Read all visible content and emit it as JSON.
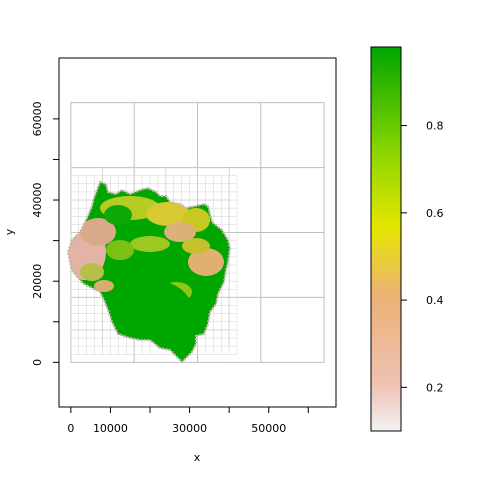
{
  "chart_data": {
    "type": "heatmap",
    "subtype": "quadtree raster map with colour key",
    "xlabel": "x",
    "ylabel": "y",
    "xlim": [
      -3000,
      67000
    ],
    "ylim": [
      -11000,
      75000
    ],
    "x_ticks": [
      0,
      10000,
      30000,
      50000
    ],
    "x_tick_marks": [
      0,
      10000,
      20000,
      30000,
      40000,
      50000,
      60000
    ],
    "y_ticks": [
      0,
      20000,
      40000,
      60000
    ],
    "y_tick_marks": [
      0,
      10000,
      20000,
      30000,
      40000,
      50000,
      60000
    ],
    "grid_extent": {
      "x": [
        0,
        64000
      ],
      "y": [
        0,
        64000
      ]
    },
    "grid_lines": {
      "x": [
        16000,
        32000,
        48000
      ],
      "y": [
        16000,
        32000,
        48000
      ]
    },
    "colorbar": {
      "range": [
        0.1,
        0.98
      ],
      "ticks": [
        0.2,
        0.4,
        0.6,
        0.8
      ],
      "colors": [
        "#f2f2f2",
        "#efc2b3",
        "#ecb176",
        "#e6e600",
        "#8ed600",
        "#00a600"
      ]
    },
    "regions": [
      {
        "name": "main-landmass",
        "value": 0.95
      },
      {
        "name": "western-pink-zone",
        "value": 0.25
      },
      {
        "name": "northern-yellow-zone",
        "value": 0.55
      },
      {
        "name": "eastern-tan-zone",
        "value": 0.4
      }
    ]
  }
}
